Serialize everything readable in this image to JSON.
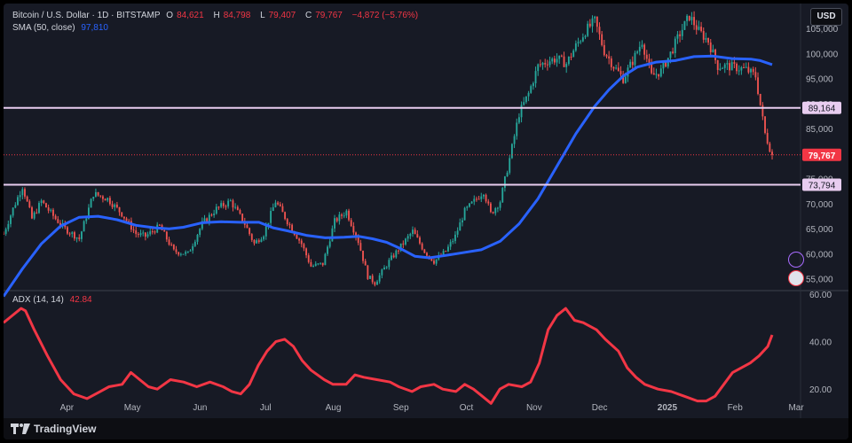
{
  "header": {
    "symbol": "Bitcoin / U.S. Dollar · 1D · BITSTAMP",
    "open_label": "O",
    "open": "84,621",
    "high_label": "H",
    "high": "84,798",
    "low_label": "L",
    "low": "79,407",
    "close_label": "C",
    "close": "79,767",
    "change": "−4,872 (−5.76%)",
    "sma_label": "SMA (50, close)",
    "sma_value": "97,810",
    "adx_label": "ADX (14, 14)",
    "adx_value": "42.84"
  },
  "currency": "USD",
  "footer": {
    "brand": "TradingView"
  },
  "colors": {
    "background": "#171a25",
    "up": "#26a69a",
    "down": "#ef5350",
    "sma": "#2962ff",
    "adx": "#f23645",
    "hline": "#e8cdf0",
    "price_tag": "#f23645"
  },
  "chart_data": [
    {
      "type": "candlestick",
      "title": "Bitcoin / U.S. Dollar · 1D · BITSTAMP",
      "x_ticks": [
        "Apr",
        "May",
        "Jun",
        "Jul",
        "Aug",
        "Sep",
        "Oct",
        "Nov",
        "Dec",
        "2025",
        "Feb",
        "Mar"
      ],
      "y_ticks": [
        "55,000",
        "60,000",
        "65,000",
        "70,000",
        "75,000",
        "80,000",
        "85,000",
        "90,000",
        "95,000",
        "100,000",
        "105,000"
      ],
      "ylim": [
        53000,
        110000
      ],
      "price_points": [
        [
          0,
          64000
        ],
        [
          4,
          69000
        ],
        [
          8,
          73500
        ],
        [
          12,
          67000
        ],
        [
          16,
          70500
        ],
        [
          22,
          67000
        ],
        [
          26,
          65000
        ],
        [
          32,
          63000
        ],
        [
          38,
          72000
        ],
        [
          44,
          71000
        ],
        [
          50,
          68000
        ],
        [
          56,
          64000
        ],
        [
          60,
          63500
        ],
        [
          66,
          65500
        ],
        [
          72,
          60500
        ],
        [
          78,
          60000
        ],
        [
          84,
          66000
        ],
        [
          90,
          69000
        ],
        [
          96,
          70500
        ],
        [
          102,
          66000
        ],
        [
          106,
          62000
        ],
        [
          110,
          64000
        ],
        [
          115,
          70500
        ],
        [
          120,
          66500
        ],
        [
          126,
          62000
        ],
        [
          130,
          57500
        ],
        [
          135,
          58000
        ],
        [
          140,
          66500
        ],
        [
          145,
          68500
        ],
        [
          150,
          62500
        ],
        [
          154,
          55500
        ],
        [
          157,
          54200
        ],
        [
          163,
          58500
        ],
        [
          168,
          61500
        ],
        [
          173,
          64500
        ],
        [
          178,
          60500
        ],
        [
          182,
          58500
        ],
        [
          187,
          60500
        ],
        [
          191,
          63500
        ],
        [
          195,
          68500
        ],
        [
          199,
          70500
        ],
        [
          203,
          72500
        ],
        [
          206,
          68000
        ],
        [
          210,
          70500
        ],
        [
          214,
          79000
        ],
        [
          218,
          88000
        ],
        [
          222,
          92000
        ],
        [
          226,
          97500
        ],
        [
          230,
          98500
        ],
        [
          234,
          99000
        ],
        [
          238,
          98000
        ],
        [
          242,
          101500
        ],
        [
          246,
          104500
        ],
        [
          250,
          106500
        ],
        [
          254,
          100500
        ],
        [
          258,
          97500
        ],
        [
          262,
          95000
        ],
        [
          266,
          98500
        ],
        [
          270,
          102500
        ],
        [
          274,
          95500
        ],
        [
          278,
          96500
        ],
        [
          282,
          100000
        ],
        [
          286,
          104000
        ],
        [
          290,
          107500
        ],
        [
          294,
          104500
        ],
        [
          298,
          102500
        ],
        [
          302,
          97500
        ],
        [
          306,
          97500
        ],
        [
          310,
          97200
        ],
        [
          314,
          96800
        ],
        [
          318,
          95500
        ],
        [
          322,
          84000
        ],
        [
          325,
          79767
        ]
      ],
      "sma_50": [
        [
          0,
          51500
        ],
        [
          8,
          57000
        ],
        [
          16,
          62000
        ],
        [
          24,
          65500
        ],
        [
          32,
          67300
        ],
        [
          40,
          67500
        ],
        [
          48,
          66800
        ],
        [
          56,
          65700
        ],
        [
          64,
          65200
        ],
        [
          70,
          65000
        ],
        [
          76,
          65300
        ],
        [
          84,
          66200
        ],
        [
          92,
          66400
        ],
        [
          100,
          66300
        ],
        [
          108,
          66300
        ],
        [
          114,
          65200
        ],
        [
          120,
          64600
        ],
        [
          128,
          63700
        ],
        [
          136,
          63200
        ],
        [
          144,
          63300
        ],
        [
          150,
          63500
        ],
        [
          156,
          63000
        ],
        [
          162,
          62300
        ],
        [
          168,
          61000
        ],
        [
          174,
          59500
        ],
        [
          180,
          59200
        ],
        [
          186,
          59600
        ],
        [
          194,
          60200
        ],
        [
          202,
          60800
        ],
        [
          210,
          62500
        ],
        [
          218,
          66000
        ],
        [
          226,
          71000
        ],
        [
          234,
          77500
        ],
        [
          242,
          84000
        ],
        [
          250,
          89500
        ],
        [
          256,
          92800
        ],
        [
          262,
          95500
        ],
        [
          268,
          97300
        ],
        [
          276,
          98300
        ],
        [
          284,
          98600
        ],
        [
          292,
          99400
        ],
        [
          300,
          99500
        ],
        [
          308,
          99000
        ],
        [
          316,
          98900
        ],
        [
          320,
          98600
        ],
        [
          325,
          97810
        ]
      ],
      "last_price": 79767,
      "price_labels": [
        "89,164",
        "79,767",
        "73,794"
      ],
      "horizontal_lines": [
        89164,
        73794
      ]
    },
    {
      "type": "line",
      "name": "ADX (14, 14)",
      "y_ticks": [
        "20.00",
        "40.00",
        "60.00"
      ],
      "ylim": [
        10,
        60
      ],
      "values": [
        [
          0,
          48
        ],
        [
          4,
          51
        ],
        [
          8,
          54
        ],
        [
          10,
          53
        ],
        [
          14,
          45
        ],
        [
          20,
          34
        ],
        [
          26,
          24
        ],
        [
          32,
          18
        ],
        [
          38,
          16
        ],
        [
          44,
          19
        ],
        [
          48,
          21
        ],
        [
          54,
          22
        ],
        [
          58,
          27
        ],
        [
          62,
          24
        ],
        [
          66,
          21
        ],
        [
          70,
          20
        ],
        [
          76,
          24
        ],
        [
          82,
          23
        ],
        [
          88,
          21
        ],
        [
          94,
          23
        ],
        [
          100,
          21
        ],
        [
          104,
          19
        ],
        [
          108,
          18
        ],
        [
          112,
          22
        ],
        [
          116,
          30
        ],
        [
          120,
          36
        ],
        [
          124,
          40
        ],
        [
          128,
          41
        ],
        [
          132,
          38
        ],
        [
          136,
          32
        ],
        [
          140,
          28
        ],
        [
          146,
          24
        ],
        [
          150,
          22
        ],
        [
          156,
          22
        ],
        [
          160,
          26
        ],
        [
          164,
          25
        ],
        [
          170,
          24
        ],
        [
          176,
          23
        ],
        [
          180,
          21
        ],
        [
          186,
          19
        ],
        [
          190,
          21
        ],
        [
          196,
          22
        ],
        [
          200,
          20
        ],
        [
          206,
          19
        ],
        [
          210,
          22
        ],
        [
          214,
          20
        ],
        [
          218,
          17
        ],
        [
          222,
          14
        ],
        [
          226,
          20
        ],
        [
          230,
          22
        ],
        [
          236,
          21
        ],
        [
          240,
          23
        ],
        [
          244,
          31
        ],
        [
          248,
          45
        ],
        [
          252,
          51
        ],
        [
          256,
          54
        ],
        [
          260,
          49
        ],
        [
          264,
          48
        ],
        [
          270,
          45
        ],
        [
          274,
          41
        ],
        [
          280,
          36
        ],
        [
          284,
          29
        ],
        [
          288,
          25
        ],
        [
          292,
          22
        ],
        [
          298,
          20
        ],
        [
          304,
          19
        ],
        [
          310,
          17
        ],
        [
          316,
          15
        ],
        [
          320,
          15
        ],
        [
          324,
          17
        ],
        [
          328,
          22
        ],
        [
          332,
          27
        ],
        [
          336,
          29
        ],
        [
          340,
          31
        ],
        [
          344,
          34
        ],
        [
          348,
          38
        ],
        [
          350,
          42.84
        ]
      ]
    }
  ]
}
